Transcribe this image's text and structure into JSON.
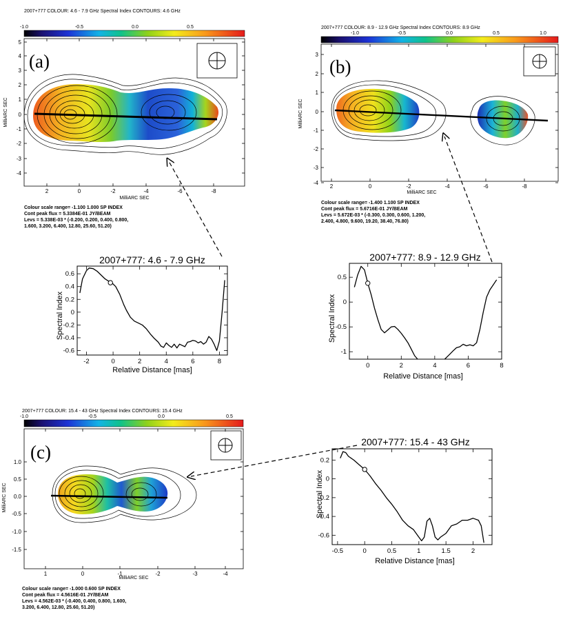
{
  "maps": [
    {
      "panel_label": "(a)",
      "header": "2007+777  COLOUR: 4.6 - 7.9 GHz Spectral Index  CONTOURS: 4.6 GHz",
      "colorbar_ticks": [
        "-1.0",
        "-0.5",
        "0.0",
        "0.5"
      ],
      "x_ticks": [
        "2",
        "0",
        "-2",
        "-4",
        "-6",
        "-8"
      ],
      "y_ticks": [
        "5",
        "4",
        "3",
        "2",
        "1",
        "0",
        "-1",
        "-2",
        "-3",
        "-4"
      ],
      "xlabel": "MilliARC SEC",
      "ylabel": "MilliARC SEC",
      "notes": [
        "Colour scale range= -1.100 1.000 SP INDEX",
        "Cont peak flux =  5.3384E-01 JY/BEAM",
        "Levs = 5.338E-03 * (-0.200, 0.200, 0.400, 0.800,",
        "1.600, 3.200, 6.400, 12.80, 25.60, 51.20)"
      ]
    },
    {
      "panel_label": "(b)",
      "header": "2007+777  COLOUR: 8.9 - 12.9 GHz Spectral Index  CONTOURS: 8.9 GHz",
      "colorbar_ticks": [
        "-1.0",
        "-0.5",
        "0.0",
        "0.5",
        "1.0"
      ],
      "x_ticks": [
        "2",
        "0",
        "-2",
        "-4",
        "-6",
        "-8"
      ],
      "y_ticks": [
        "3",
        "2",
        "1",
        "0",
        "-1",
        "-2",
        "-3",
        "-4"
      ],
      "xlabel": "MilliARC SEC",
      "ylabel": "MilliARC SEC",
      "notes": [
        "Colour scale range= -1.400 1.100 SP INDEX",
        "Cont peak flux =  5.6716E-01 JY/BEAM",
        "Levs = 5.672E-03 * (-0.300, 0.300, 0.600, 1.200,",
        "2.400, 4.800, 9.600, 19.20, 38.40, 76.80)"
      ]
    },
    {
      "panel_label": "(c)",
      "header": "2007+777  COLOUR: 15.4 - 43 GHz Spectral Index  CONTOURS: 15.4 GHz",
      "colorbar_ticks": [
        "-1.0",
        "-0.5",
        "0.0",
        "0.5"
      ],
      "x_ticks": [
        "1",
        "0",
        "-1",
        "-2",
        "-3",
        "-4"
      ],
      "y_ticks": [
        "1.0",
        "0.5",
        "0.0",
        "-0.5",
        "-1.0",
        "-1.5"
      ],
      "xlabel": "MilliARC SEC",
      "ylabel": "MilliARC SEC",
      "notes": [
        "Colour scale range= -1.000 0.600 SP INDEX",
        "Cont peak flux =  4.5616E-01 JY/BEAM",
        "Levs = 4.562E-03 * (-0.400, 0.400, 0.800, 1.600,",
        "3.200, 6.400, 12.80, 25.60, 51.20)"
      ]
    }
  ],
  "chart_data": [
    {
      "type": "line",
      "title": "2007+777: 4.6 - 7.9 GHz",
      "xlabel": "Relative Distance [mas]",
      "ylabel": "Spectral Index",
      "xlim": [
        -2.7,
        8.6
      ],
      "ylim": [
        -0.67,
        0.72
      ],
      "x_ticks": [
        -2,
        0,
        2,
        4,
        6,
        8
      ],
      "y_ticks": [
        0.6,
        0.4,
        0.2,
        0,
        -0.2,
        -0.4,
        -0.6
      ],
      "x_tick_labels": [
        "-2",
        "0",
        "2",
        "4",
        "6",
        "8"
      ],
      "y_tick_labels": [
        "0.6",
        "0.4",
        "0.2",
        "0",
        "-0.2",
        "-0.4",
        "-0.6"
      ],
      "marker": {
        "x": -0.2,
        "y": 0.46
      },
      "series": [
        {
          "name": "spectral index profile",
          "x": [
            -2.5,
            -2.3,
            -2.0,
            -1.8,
            -1.5,
            -1.2,
            -0.9,
            -0.6,
            -0.3,
            -0.1,
            0.2,
            0.5,
            0.8,
            1.0,
            1.3,
            1.6,
            1.9,
            2.2,
            2.5,
            2.8,
            3.1,
            3.4,
            3.6,
            3.8,
            4.0,
            4.2,
            4.4,
            4.6,
            4.8,
            5.0,
            5.2,
            5.4,
            5.6,
            5.8,
            6.0,
            6.2,
            6.4,
            6.6,
            6.8,
            7.0,
            7.2,
            7.4,
            7.6,
            7.8,
            8.0,
            8.2,
            8.4
          ],
          "y": [
            0.3,
            0.52,
            0.65,
            0.69,
            0.68,
            0.64,
            0.58,
            0.52,
            0.48,
            0.46,
            0.4,
            0.28,
            0.12,
            0.03,
            -0.08,
            -0.14,
            -0.17,
            -0.2,
            -0.26,
            -0.34,
            -0.41,
            -0.47,
            -0.53,
            -0.55,
            -0.48,
            -0.52,
            -0.55,
            -0.5,
            -0.56,
            -0.5,
            -0.52,
            -0.54,
            -0.47,
            -0.46,
            -0.44,
            -0.45,
            -0.48,
            -0.46,
            -0.5,
            -0.47,
            -0.38,
            -0.42,
            -0.5,
            -0.6,
            -0.45,
            0.0,
            0.5
          ]
        }
      ]
    },
    {
      "type": "line",
      "title": "2007+777: 8.9 - 12.9 GHz",
      "xlabel": "Relative Distance [mas]",
      "ylabel": "Spectral Index",
      "xlim": [
        -1.1,
        8.0
      ],
      "ylim": [
        -1.15,
        0.78
      ],
      "x_ticks": [
        0,
        2,
        4,
        6,
        8
      ],
      "y_ticks": [
        0.5,
        0,
        -0.5,
        -1
      ],
      "x_tick_labels": [
        "0",
        "2",
        "4",
        "6",
        "8"
      ],
      "y_tick_labels": [
        "0.5",
        "0",
        "-0.5",
        "-1"
      ],
      "marker": {
        "x": 0.0,
        "y": 0.38
      },
      "series": [
        {
          "name": "spectral index profile (inner)",
          "x": [
            -0.8,
            -0.6,
            -0.4,
            -0.2,
            0.0,
            0.2,
            0.4,
            0.6,
            0.8,
            1.0,
            1.2,
            1.4,
            1.6,
            1.8,
            2.0,
            2.2,
            2.4,
            2.6,
            2.8,
            3.0
          ],
          "y": [
            0.3,
            0.55,
            0.72,
            0.65,
            0.38,
            0.15,
            -0.12,
            -0.35,
            -0.55,
            -0.62,
            -0.56,
            -0.5,
            -0.49,
            -0.55,
            -0.63,
            -0.72,
            -0.82,
            -0.95,
            -1.08,
            -1.16
          ]
        },
        {
          "name": "spectral index profile (outer)",
          "x": [
            4.6,
            4.9,
            5.1,
            5.3,
            5.5,
            5.7,
            5.9,
            6.1,
            6.3,
            6.5,
            6.7,
            6.9,
            7.1,
            7.3,
            7.5,
            7.7
          ],
          "y": [
            -1.15,
            -1.05,
            -0.98,
            -0.92,
            -0.9,
            -0.85,
            -0.88,
            -0.86,
            -0.88,
            -0.82,
            -0.55,
            -0.2,
            0.1,
            0.25,
            0.35,
            0.45
          ]
        }
      ]
    },
    {
      "type": "line",
      "title": "2007+777: 15.4 - 43 GHz",
      "xlabel": "Relative Distance [mas]",
      "ylabel": "Spectral Index",
      "xlim": [
        -0.6,
        2.35
      ],
      "ylim": [
        -0.7,
        0.32
      ],
      "x_ticks": [
        -0.5,
        0,
        0.5,
        1,
        1.5,
        2
      ],
      "y_ticks": [
        0.2,
        0,
        -0.2,
        -0.4,
        -0.6
      ],
      "x_tick_labels": [
        "-0.5",
        "0",
        "0.5",
        "1",
        "1.5",
        "2"
      ],
      "y_tick_labels": [
        "0.2",
        "0",
        "-0.2",
        "-0.4",
        "-0.6"
      ],
      "marker": {
        "x": 0.0,
        "y": 0.1
      },
      "series": [
        {
          "name": "spectral index profile",
          "x": [
            -0.45,
            -0.4,
            -0.35,
            -0.3,
            -0.2,
            -0.1,
            0.0,
            0.1,
            0.2,
            0.3,
            0.4,
            0.5,
            0.6,
            0.7,
            0.8,
            0.9,
            1.0,
            1.05,
            1.1,
            1.15,
            1.2,
            1.25,
            1.3,
            1.35,
            1.4,
            1.5,
            1.6,
            1.7,
            1.8,
            1.9,
            2.0,
            2.1,
            2.15,
            2.2
          ],
          "y": [
            0.22,
            0.29,
            0.28,
            0.24,
            0.2,
            0.15,
            0.1,
            0.03,
            -0.05,
            -0.12,
            -0.2,
            -0.27,
            -0.35,
            -0.44,
            -0.5,
            -0.54,
            -0.62,
            -0.66,
            -0.62,
            -0.45,
            -0.42,
            -0.5,
            -0.62,
            -0.65,
            -0.62,
            -0.58,
            -0.5,
            -0.48,
            -0.44,
            -0.44,
            -0.42,
            -0.44,
            -0.5,
            -0.68
          ]
        }
      ]
    }
  ]
}
